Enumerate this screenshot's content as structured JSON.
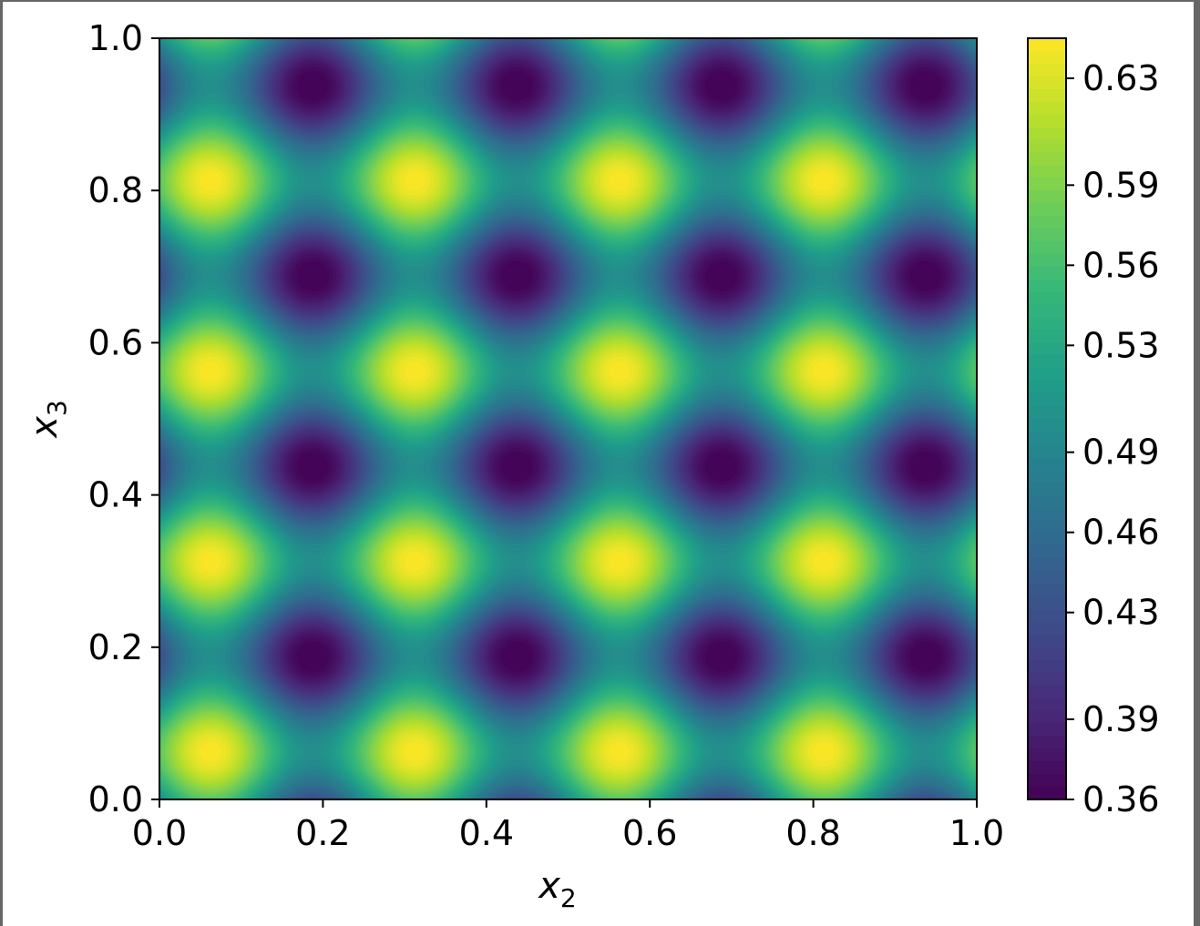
{
  "chart_data": {
    "type": "heatmap",
    "subtype": "filled-contour",
    "colormap": "viridis",
    "title": "",
    "xlabel": {
      "base": "x",
      "sub": "2"
    },
    "ylabel": {
      "base": "x",
      "sub": "3"
    },
    "xlim": [
      0.0,
      1.0
    ],
    "ylim": [
      0.0,
      1.0
    ],
    "x_ticks": [
      "0.0",
      "0.2",
      "0.4",
      "0.6",
      "0.8",
      "1.0"
    ],
    "y_ticks": [
      "0.0",
      "0.2",
      "0.4",
      "0.6",
      "0.8",
      "1.0"
    ],
    "colorbar": {
      "range": [
        0.36,
        0.645
      ],
      "ticks": [
        "0.36",
        "0.39",
        "0.43",
        "0.46",
        "0.49",
        "0.53",
        "0.56",
        "0.59",
        "0.63"
      ],
      "tick_values": [
        0.36,
        0.39,
        0.43,
        0.46,
        0.49,
        0.53,
        0.56,
        0.59,
        0.63
      ]
    },
    "field": {
      "description_formula": "z = 0.5 + 0.072*(cos(8*pi*(x-0.0625)) + cos(8*pi*(y-0.0625)))",
      "mean": 0.5,
      "amplitude": 0.072,
      "period_x": 0.25,
      "period_y": 0.25,
      "phase_x": 0.0625,
      "phase_y": 0.0625,
      "maxima_value": 0.64,
      "minima_value": 0.36,
      "maxima_centers_x": [
        0.0625,
        0.3125,
        0.5625,
        0.8125
      ],
      "maxima_centers_y": [
        0.0625,
        0.3125,
        0.5625,
        0.8125
      ],
      "minima_centers_x": [
        0.1875,
        0.4375,
        0.6875,
        0.9375
      ],
      "minima_centers_y": [
        0.1875,
        0.4375,
        0.6875,
        0.9375
      ]
    },
    "grid": false,
    "legend": "none"
  }
}
